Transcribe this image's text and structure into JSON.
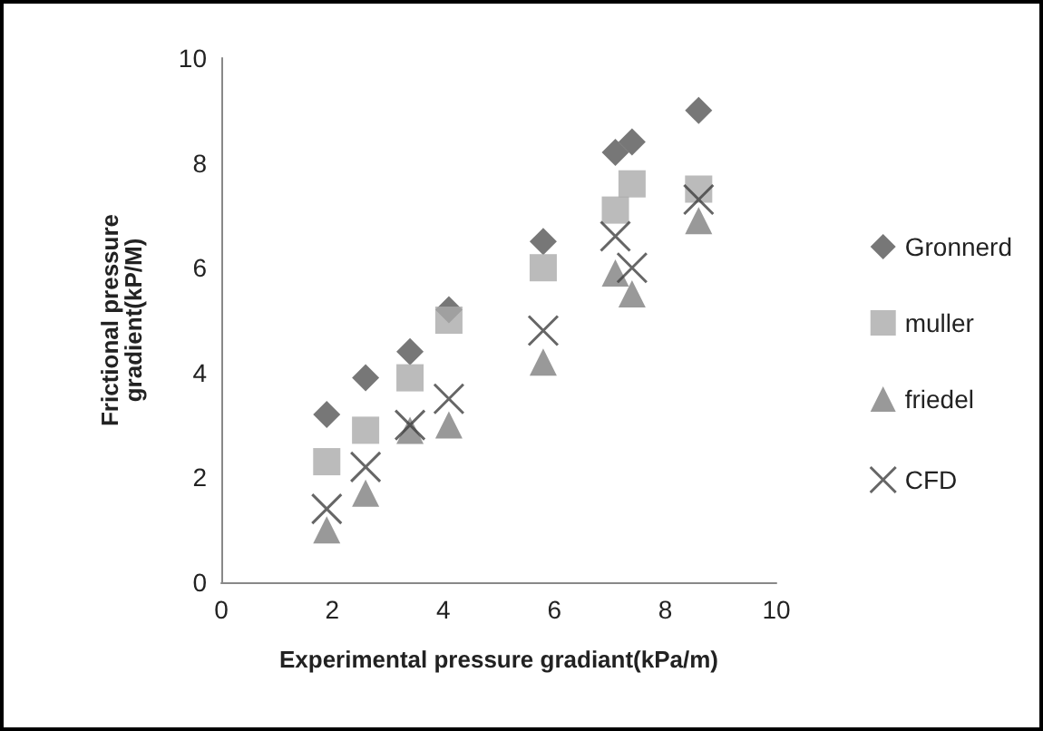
{
  "chart_data": {
    "type": "scatter",
    "xlabel": "Experimental pressure gradiant(kPa/m)",
    "ylabel": "Frictional pressure gradient(kP/M)",
    "x": [
      1.9,
      2.6,
      3.4,
      4.1,
      5.8,
      7.1,
      7.4,
      8.6
    ],
    "xlim": [
      0,
      10
    ],
    "xticks": [
      0,
      2,
      4,
      6,
      8,
      10
    ],
    "ylim": [
      0,
      10
    ],
    "yticks": [
      0,
      2,
      4,
      6,
      8,
      10
    ],
    "grid": false,
    "legend": "right",
    "series": [
      {
        "name": "Gronnerd",
        "color": "#555555",
        "marker": "diamond",
        "values": [
          3.2,
          3.9,
          4.4,
          5.2,
          6.5,
          8.2,
          8.4,
          9.0
        ]
      },
      {
        "name": "muller",
        "color": "#aaaaaa",
        "marker": "square",
        "values": [
          2.3,
          2.9,
          3.9,
          5.0,
          6.0,
          7.1,
          7.6,
          7.5
        ]
      },
      {
        "name": "friedel",
        "color": "#808080",
        "marker": "triangle",
        "values": [
          1.0,
          1.7,
          2.9,
          3.0,
          4.2,
          5.9,
          5.5,
          6.9
        ]
      },
      {
        "name": "CFD",
        "color": "#404040",
        "marker": "cross",
        "values": [
          1.4,
          2.2,
          3.0,
          3.5,
          4.8,
          6.6,
          6.0,
          7.3
        ]
      }
    ]
  }
}
